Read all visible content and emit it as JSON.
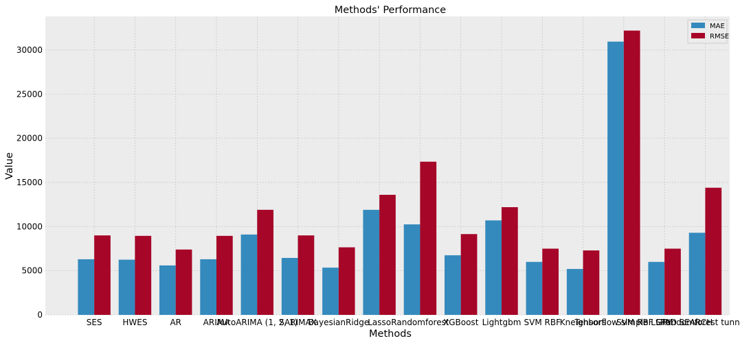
{
  "chart_data": {
    "type": "bar",
    "title": "Methods' Performance",
    "xlabel": "Methods",
    "ylabel": "Value",
    "ylim": [
      0,
      33800
    ],
    "yticks": [
      0,
      5000,
      10000,
      15000,
      20000,
      25000,
      30000
    ],
    "grid": true,
    "legend_position": "top-right",
    "categories": [
      "SES",
      "HWES",
      "AR",
      "ARIMA",
      "AutoARIMA (1, 2, 1)",
      "SARIMAX",
      "BayesianRidge",
      "Lasso",
      "Randomforest",
      "XGBoost",
      "Lightgbm",
      "SVM RBF",
      "Kneighbors",
      "Tensorflow simple LSTM",
      "SVM RBF GRID SEARCH",
      "Randomforest tunned"
    ],
    "series": [
      {
        "name": "MAE",
        "color": "#348abd",
        "values": [
          6300,
          6250,
          5600,
          6300,
          9100,
          6450,
          5350,
          11900,
          10250,
          6750,
          10700,
          6000,
          5200,
          30950,
          6000,
          9300
        ]
      },
      {
        "name": "RMSE",
        "color": "#a60628",
        "values": [
          9000,
          8950,
          7400,
          8950,
          11900,
          9000,
          7650,
          13600,
          17350,
          9150,
          12200,
          7500,
          7300,
          32200,
          7500,
          14400
        ]
      }
    ],
    "background": "#ececec",
    "grid_color": "#c8c8c8"
  }
}
